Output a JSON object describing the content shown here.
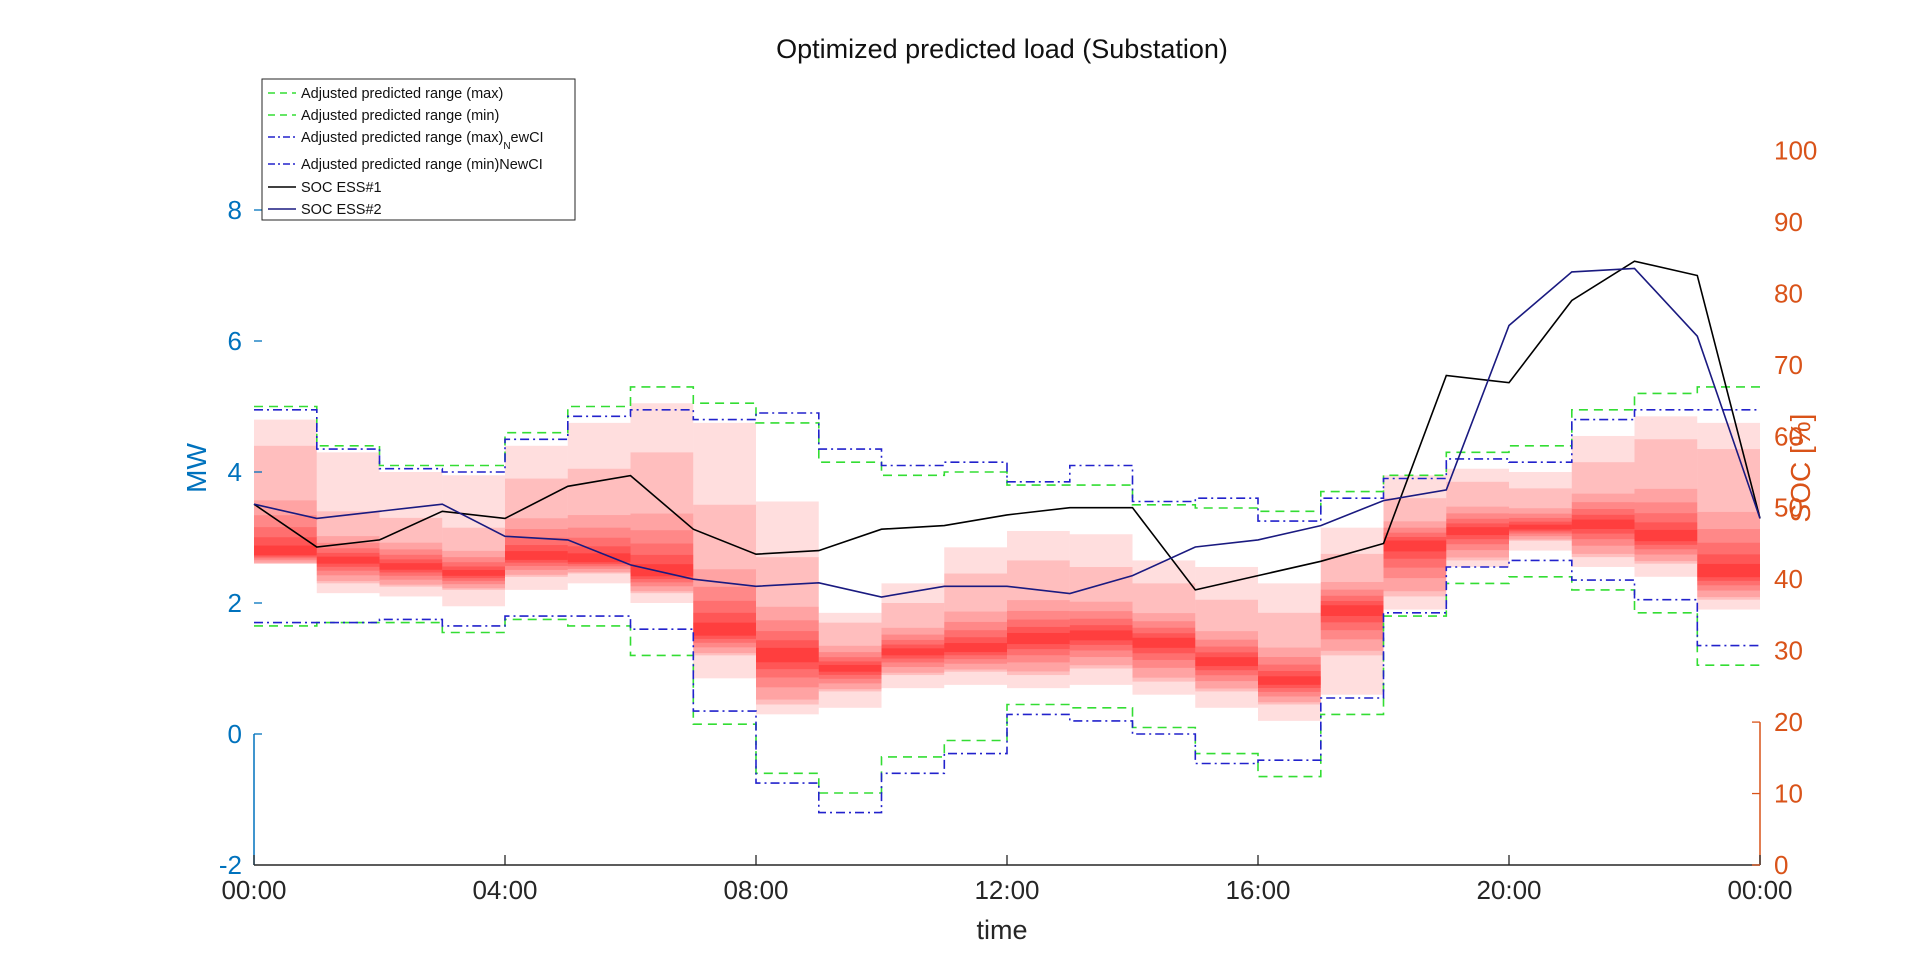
{
  "chart_data": {
    "type": "line",
    "title": "Optimized predicted load (Substation)",
    "xlabel": "time",
    "ylabel_left": "MW",
    "ylabel_right": "SOC [%]",
    "x_ticks": [
      "00:00",
      "04:00",
      "08:00",
      "12:00",
      "16:00",
      "20:00",
      "00:00"
    ],
    "xlim_hours": [
      0,
      24
    ],
    "ylim_left": [
      -2,
      10
    ],
    "ylim_right": [
      0,
      110
    ],
    "yticks_left": [
      -2,
      0,
      2,
      4,
      6,
      8
    ],
    "yticks_right": [
      0,
      10,
      20,
      30,
      40,
      50,
      60,
      70,
      80,
      90,
      100
    ],
    "grid": false,
    "legend_placement": "top-left",
    "colors": {
      "left_axis": "#0072BD",
      "right_axis": "#D95319",
      "range_green": "#33DD33",
      "range_blue": "#2222CC",
      "soc1": "#000000",
      "soc2": "#1A1A80",
      "heat": "#FF0000"
    },
    "legend": [
      {
        "label": "Adjusted predicted range (max)",
        "style": "green-dash"
      },
      {
        "label": "Adjusted predicted range (min)",
        "style": "green-dash"
      },
      {
        "label": "Adjusted predicted range (max)",
        "sub": "N",
        "suffix": "ewCI",
        "style": "blue-dashdot"
      },
      {
        "label": "Adjusted predicted range (min)NewCI",
        "style": "blue-dashdot"
      },
      {
        "label": "SOC ESS#1",
        "style": "black-solid"
      },
      {
        "label": "SOC ESS#2",
        "style": "navy-solid"
      }
    ],
    "series": [
      {
        "name": "Adjusted predicted range (max)",
        "axis": "left",
        "kind": "stairs",
        "values": [
          5.0,
          4.4,
          4.1,
          4.1,
          4.6,
          5.0,
          5.3,
          5.05,
          4.75,
          4.15,
          3.95,
          4.0,
          3.8,
          3.8,
          3.5,
          3.45,
          3.4,
          3.7,
          3.95,
          4.3,
          4.4,
          4.95,
          5.2,
          5.3
        ]
      },
      {
        "name": "Adjusted predicted range (min)",
        "axis": "left",
        "kind": "stairs",
        "values": [
          1.65,
          1.7,
          1.7,
          1.55,
          1.75,
          1.65,
          1.2,
          0.15,
          -0.6,
          -0.9,
          -0.35,
          -0.1,
          0.45,
          0.4,
          0.1,
          -0.3,
          -0.65,
          0.3,
          1.8,
          2.3,
          2.4,
          2.2,
          1.85,
          1.05
        ]
      },
      {
        "name": "Adjusted predicted range (max)NewCI",
        "axis": "left",
        "kind": "stairs",
        "values": [
          4.95,
          4.35,
          4.05,
          4.0,
          4.5,
          4.85,
          4.95,
          4.8,
          4.9,
          4.35,
          4.1,
          4.15,
          3.85,
          4.1,
          3.55,
          3.6,
          3.25,
          3.6,
          3.9,
          4.2,
          4.15,
          4.8,
          4.95,
          4.95
        ]
      },
      {
        "name": "Adjusted predicted range (min)NewCI",
        "axis": "left",
        "kind": "stairs",
        "values": [
          1.7,
          1.7,
          1.75,
          1.65,
          1.8,
          1.8,
          1.6,
          0.35,
          -0.75,
          -1.2,
          -0.6,
          -0.3,
          0.3,
          0.2,
          0.0,
          -0.45,
          -0.4,
          0.55,
          1.85,
          2.55,
          2.65,
          2.35,
          2.05,
          1.35
        ]
      },
      {
        "name": "SOC ESS#1",
        "axis": "right",
        "x": [
          0,
          1,
          2,
          3,
          4,
          5,
          6,
          7,
          8,
          9,
          10,
          11,
          12,
          13,
          14,
          15,
          16,
          17,
          18,
          19,
          20,
          21,
          22,
          23,
          24
        ],
        "values": [
          50.5,
          44.5,
          45.5,
          49.5,
          48.5,
          53,
          54.5,
          47,
          43.5,
          44,
          47,
          47.5,
          49,
          50,
          50,
          38.5,
          40.5,
          42.5,
          45,
          68.5,
          67.5,
          79,
          84.5,
          82.5,
          48.5
        ]
      },
      {
        "name": "SOC ESS#2",
        "axis": "right",
        "x": [
          0,
          1,
          2,
          3,
          4,
          5,
          6,
          7,
          8,
          9,
          10,
          11,
          12,
          13,
          14,
          15,
          16,
          17,
          18,
          19,
          20,
          21,
          22,
          23,
          24
        ],
        "values": [
          50.5,
          48.5,
          49.5,
          50.5,
          46,
          45.5,
          42,
          40,
          39,
          39.5,
          37.5,
          39,
          39,
          38,
          40.5,
          44.5,
          45.5,
          47.5,
          51,
          52.5,
          75.5,
          83,
          83.5,
          74,
          48.5
        ]
      }
    ],
    "heatmap_bands": [
      {
        "q5": 2.7,
        "q10": 2.6,
        "q50": 2.75,
        "q90": 4.4,
        "q95": 4.8
      },
      {
        "q5": 2.15,
        "q10": 2.3,
        "q50": 2.65,
        "q90": 3.4,
        "q95": 4.3
      },
      {
        "q5": 2.1,
        "q10": 2.25,
        "q50": 2.55,
        "q90": 3.3,
        "q95": 4.0
      },
      {
        "q5": 1.95,
        "q10": 2.2,
        "q50": 2.45,
        "q90": 3.15,
        "q95": 3.95
      },
      {
        "q5": 2.2,
        "q10": 2.4,
        "q50": 2.7,
        "q90": 3.9,
        "q95": 4.4
      },
      {
        "q5": 2.3,
        "q10": 2.45,
        "q50": 2.65,
        "q90": 4.05,
        "q95": 4.75
      },
      {
        "q5": 2.0,
        "q10": 2.15,
        "q50": 2.45,
        "q90": 4.3,
        "q95": 5.05
      },
      {
        "q5": 0.85,
        "q10": 1.2,
        "q50": 1.55,
        "q90": 3.5,
        "q95": 4.75
      },
      {
        "q5": 0.3,
        "q10": 0.45,
        "q50": 1.2,
        "q90": 2.7,
        "q95": 3.55
      },
      {
        "q5": 0.4,
        "q10": 0.65,
        "q50": 1.0,
        "q90": 1.7,
        "q95": 1.85
      },
      {
        "q5": 0.7,
        "q10": 0.9,
        "q50": 1.25,
        "q90": 2.0,
        "q95": 2.3
      },
      {
        "q5": 0.75,
        "q10": 0.95,
        "q50": 1.3,
        "q90": 2.45,
        "q95": 2.85
      },
      {
        "q5": 0.7,
        "q10": 0.9,
        "q50": 1.45,
        "q90": 2.65,
        "q95": 3.1
      },
      {
        "q5": 0.75,
        "q10": 1.0,
        "q50": 1.5,
        "q90": 2.55,
        "q95": 3.05
      },
      {
        "q5": 0.6,
        "q10": 0.8,
        "q50": 1.4,
        "q90": 2.3,
        "q95": 2.65
      },
      {
        "q5": 0.4,
        "q10": 0.65,
        "q50": 1.1,
        "q90": 2.05,
        "q95": 2.55
      },
      {
        "q5": 0.2,
        "q10": 0.45,
        "q50": 0.8,
        "q90": 1.85,
        "q95": 2.3
      },
      {
        "q5": 0.6,
        "q10": 1.2,
        "q50": 1.9,
        "q90": 2.75,
        "q95": 3.15
      },
      {
        "q5": 1.9,
        "q10": 2.1,
        "q50": 2.9,
        "q90": 3.6,
        "q95": 3.95
      },
      {
        "q5": 2.55,
        "q10": 2.65,
        "q50": 3.1,
        "q90": 3.85,
        "q95": 4.05
      },
      {
        "q5": 2.8,
        "q10": 2.95,
        "q50": 3.15,
        "q90": 3.75,
        "q95": 4.0
      },
      {
        "q5": 2.55,
        "q10": 2.7,
        "q50": 3.2,
        "q90": 4.15,
        "q95": 4.55
      },
      {
        "q5": 2.4,
        "q10": 2.6,
        "q50": 3.0,
        "q90": 4.5,
        "q95": 4.85
      },
      {
        "q5": 1.9,
        "q10": 2.05,
        "q50": 2.45,
        "q90": 4.35,
        "q95": 4.75
      }
    ]
  }
}
